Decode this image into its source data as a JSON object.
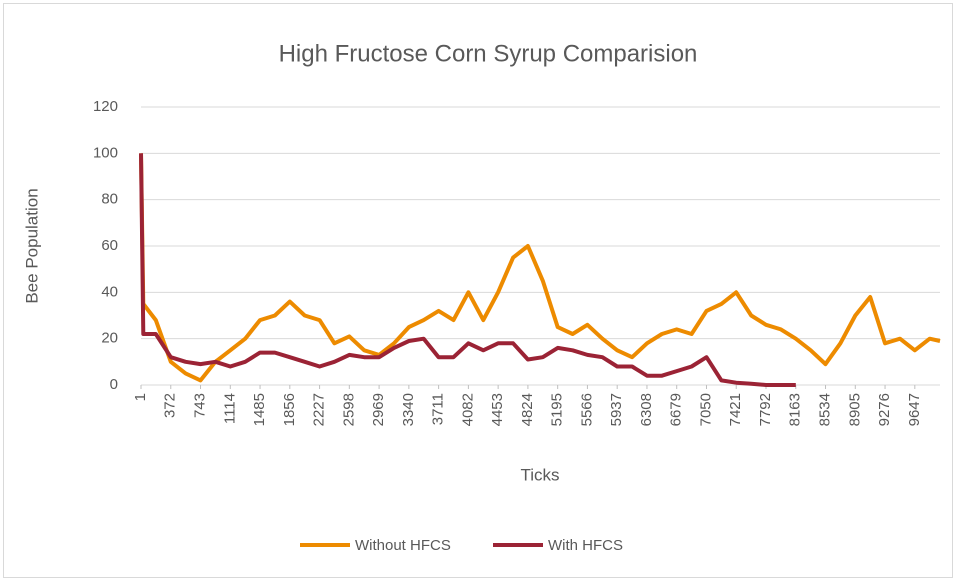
{
  "chart_data": {
    "type": "line",
    "title": "High Fructose Corn Syrup Comparision",
    "xlabel": "Ticks",
    "ylabel": "Bee Population",
    "x": [
      1,
      30,
      186,
      372,
      557,
      743,
      928,
      1114,
      1300,
      1485,
      1670,
      1856,
      2041,
      2227,
      2412,
      2598,
      2783,
      2969,
      3155,
      3340,
      3525,
      3711,
      3897,
      4082,
      4268,
      4453,
      4639,
      4824,
      5010,
      5195,
      5381,
      5566,
      5752,
      5937,
      6123,
      6308,
      6494,
      6679,
      6865,
      7050,
      7236,
      7421,
      7607,
      7792,
      7978,
      8163,
      8349,
      8534,
      8720,
      8905,
      9091,
      9276,
      9462,
      9647,
      9833,
      9961
    ],
    "series": [
      {
        "name": "Without HFCS",
        "color": "#ed8b00",
        "values": [
          100,
          35,
          28,
          10,
          5,
          2,
          10,
          15,
          20,
          28,
          30,
          36,
          30,
          28,
          18,
          21,
          15,
          13,
          18,
          25,
          28,
          32,
          28,
          40,
          28,
          40,
          55,
          60,
          45,
          25,
          22,
          26,
          20,
          15,
          12,
          18,
          22,
          24,
          22,
          32,
          35,
          40,
          30,
          26,
          24,
          20,
          15,
          9,
          18,
          30,
          38,
          18,
          20,
          15,
          20,
          19
        ]
      },
      {
        "name": "With HFCS",
        "color": "#9b2335",
        "values": [
          100,
          22,
          22,
          12,
          10,
          9,
          10,
          8,
          10,
          14,
          14,
          12,
          10,
          8,
          10,
          13,
          12,
          12,
          16,
          19,
          20,
          12,
          12,
          18,
          15,
          18,
          18,
          11,
          12,
          16,
          15,
          13,
          12,
          8,
          8,
          4,
          4,
          6,
          8,
          12,
          2,
          1,
          0.5,
          0,
          0,
          0,
          null,
          null,
          null,
          null,
          null,
          null,
          null,
          null,
          null,
          null
        ]
      }
    ],
    "xlim": [
      1,
      9961
    ],
    "xticks": [
      1,
      372,
      743,
      1114,
      1485,
      1856,
      2227,
      2598,
      2969,
      3340,
      3711,
      4082,
      4453,
      4824,
      5195,
      5566,
      5937,
      6308,
      6679,
      7050,
      7421,
      7792,
      8163,
      8534,
      8905,
      9276,
      9647
    ],
    "ylim": [
      0,
      120
    ],
    "yticks": [
      0,
      20,
      40,
      60,
      80,
      100,
      120
    ],
    "grid": true,
    "legend": "bottom"
  }
}
